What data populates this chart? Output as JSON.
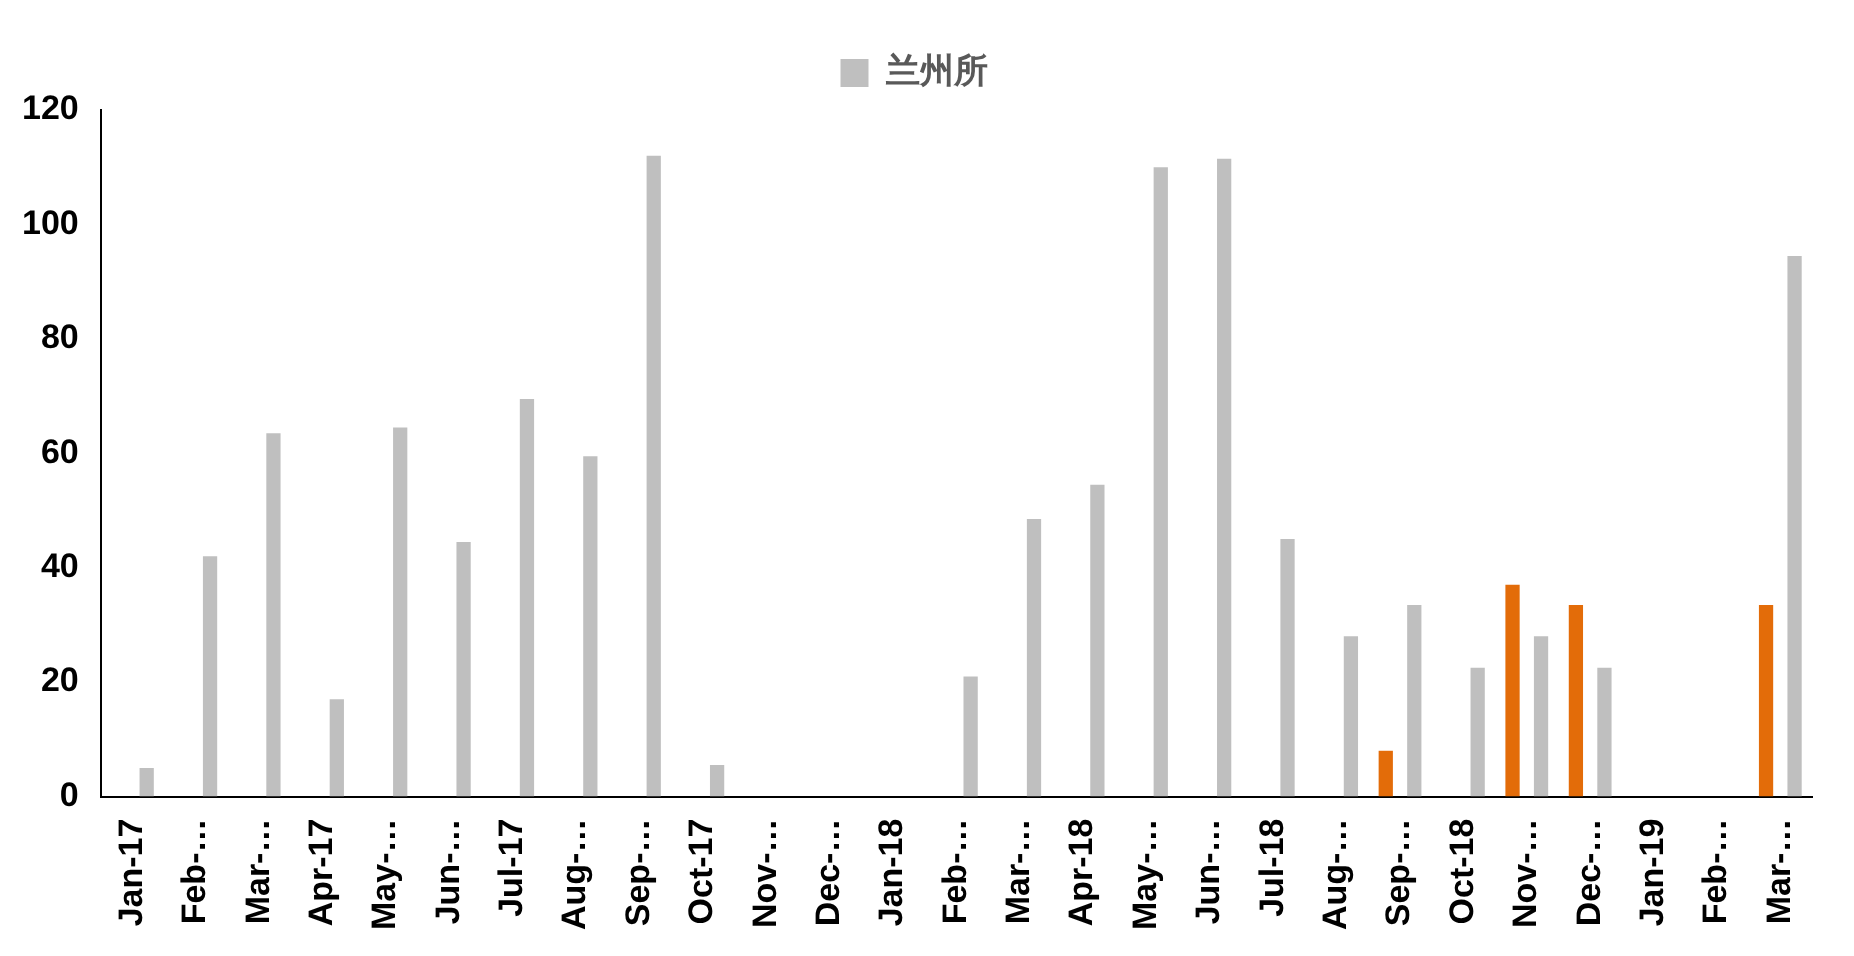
{
  "chart_data": {
    "type": "bar",
    "categories": [
      "Jan-17",
      "Feb-…",
      "Mar-…",
      "Apr-17",
      "May-…",
      "Jun-…",
      "Jul-17",
      "Aug-…",
      "Sep-…",
      "Oct-17",
      "Nov-…",
      "Dec-…",
      "Jan-18",
      "Feb-…",
      "Mar-…",
      "Apr-18",
      "May-…",
      "Jun-…",
      "Jul-18",
      "Aug-…",
      "Sep-…",
      "Oct-18",
      "Nov-…",
      "Dec-…",
      "Jan-19",
      "Feb-…",
      "Mar-…"
    ],
    "series": [
      {
        "color": "#e36c09",
        "values": [
          0,
          0,
          0,
          0,
          0,
          0,
          0,
          0,
          0,
          0,
          0,
          0,
          0,
          0,
          0,
          0,
          0,
          0,
          0,
          0,
          8,
          0,
          37,
          33.5,
          0,
          0,
          33.5
        ]
      },
      {
        "name": "兰州所",
        "color": "#bfbfbf",
        "values": [
          5,
          42,
          63.5,
          17,
          64.5,
          44.5,
          69.5,
          59.5,
          112,
          5.5,
          0,
          0,
          0,
          21,
          48.5,
          54.5,
          110,
          111.5,
          45,
          28,
          33.5,
          22.5,
          28,
          22.5,
          0,
          0,
          94.5
        ]
      }
    ],
    "ylim": [
      0,
      120
    ],
    "yticks": [
      0,
      20,
      40,
      60,
      80,
      100,
      120
    ],
    "grid": false,
    "legend": "top"
  }
}
